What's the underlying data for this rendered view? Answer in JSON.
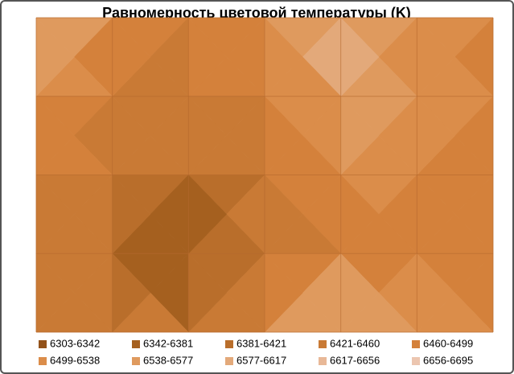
{
  "chart_data": {
    "type": "contour",
    "title": "Равномерность цветовой температуры (K)",
    "levels": [
      6303,
      6342,
      6381,
      6421,
      6460,
      6499,
      6538,
      6577,
      6617,
      6656,
      6695
    ],
    "legend_labels": [
      "6303-6342",
      "6342-6381",
      "6381-6421",
      "6421-6460",
      "6460-6499",
      "6499-6538",
      "6538-6577",
      "6577-6617",
      "6617-6656",
      "6656-6695"
    ],
    "colors": [
      "#93521a",
      "#a5601f",
      "#b96e2b",
      "#c97a35",
      "#d4813b",
      "#db8d4a",
      "#df9a5e",
      "#e3a97a",
      "#e8b897",
      "#ecc6b0"
    ],
    "z": [
      [
        6640,
        6480,
        6470,
        6500,
        6620,
        6520,
        6480
      ],
      [
        6520,
        6460,
        6440,
        6470,
        6580,
        6530,
        6500
      ],
      [
        6470,
        6440,
        6400,
        6450,
        6510,
        6500,
        6490
      ],
      [
        6460,
        6400,
        6320,
        6440,
        6470,
        6480,
        6480
      ],
      [
        6470,
        6450,
        6420,
        6500,
        6650,
        6540,
        6500
      ]
    ]
  }
}
